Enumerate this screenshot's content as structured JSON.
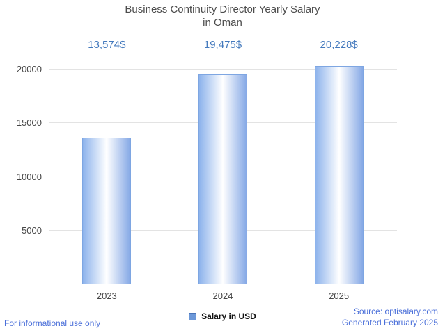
{
  "title": {
    "line1": "Business Continuity Director Yearly Salary",
    "line2": "in Oman"
  },
  "chart_data": {
    "type": "bar",
    "title": "Business Continuity Director Yearly Salary in Oman",
    "categories": [
      "2023",
      "2024",
      "2025"
    ],
    "values": [
      13574,
      19475,
      20228
    ],
    "value_labels": [
      "13,574$",
      "19,475$",
      "20,228$"
    ],
    "xlabel": "",
    "ylabel": "",
    "ylim": [
      0,
      20000
    ],
    "yticks": [
      5000,
      10000,
      15000,
      20000
    ],
    "grid": true,
    "legend": {
      "label": "Salary in USD",
      "position": "bottom"
    }
  },
  "legend": {
    "label": "Salary in USD"
  },
  "footer": {
    "left": "For informational use only",
    "source": "Source: optisalary.com",
    "generated": "Generated February 2025"
  },
  "colors": {
    "value_label": "#4379bd",
    "footer_blue": "#4a6fd9",
    "bar_gradient": [
      "#8db3ec",
      "#ffffff",
      "#86a9e6"
    ],
    "legend_swatch": "#6d98d8",
    "grid": "#e3e3e3",
    "axis": "#9e9e9e"
  }
}
